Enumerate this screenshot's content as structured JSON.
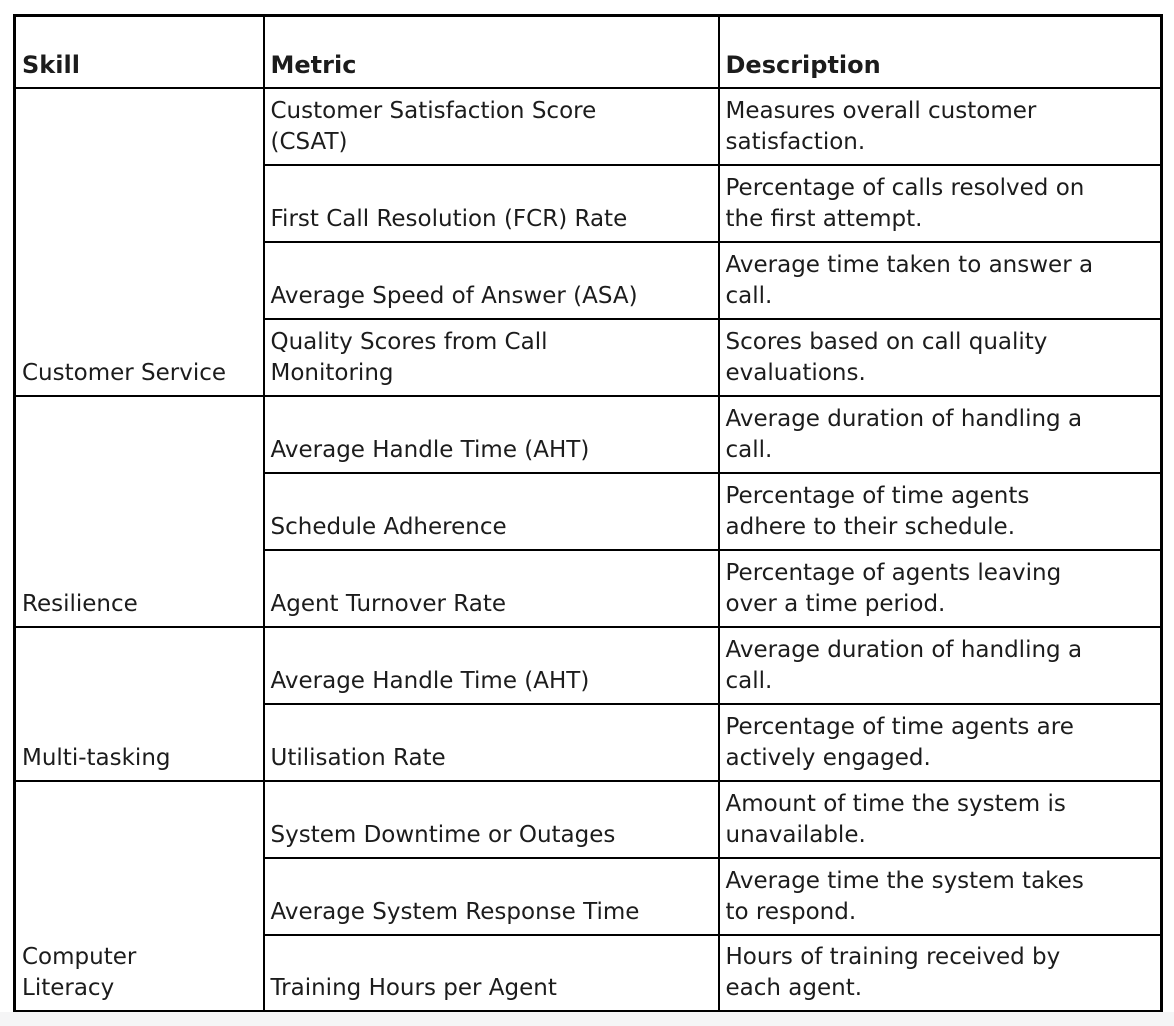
{
  "page": {
    "background_color": "#ffffff",
    "bottom_strip_color": "#f5f5f6"
  },
  "table": {
    "border_color": "#000000",
    "text_color": "#1c1c1c",
    "columns": [
      "Skill",
      "Metric",
      "Description"
    ],
    "groups": [
      {
        "skill": "Customer Service",
        "rows": [
          {
            "metric": "Customer Satisfaction Score\n(CSAT)",
            "description": "Measures overall customer\nsatisfaction."
          },
          {
            "metric": "First Call Resolution (FCR) Rate",
            "description": "Percentage of calls resolved on\nthe first attempt."
          },
          {
            "metric": "Average Speed of Answer (ASA)",
            "description": "Average time taken to answer a\ncall."
          },
          {
            "metric": "Quality Scores from Call\nMonitoring",
            "description": "Scores based on call quality\nevaluations."
          }
        ]
      },
      {
        "skill": "Resilience",
        "rows": [
          {
            "metric": "Average Handle Time (AHT)",
            "description": "Average duration of handling a\ncall."
          },
          {
            "metric": "Schedule Adherence",
            "description": "Percentage of time agents\nadhere to their schedule."
          },
          {
            "metric": "Agent Turnover Rate",
            "description": "Percentage of agents leaving\nover a time period."
          }
        ]
      },
      {
        "skill": "Multi-tasking",
        "rows": [
          {
            "metric": "Average Handle Time (AHT)",
            "description": "Average duration of handling a\ncall."
          },
          {
            "metric": "Utilisation Rate",
            "description": "Percentage of time agents are\nactively engaged."
          }
        ]
      },
      {
        "skill": "Computer\nLiteracy",
        "rows": [
          {
            "metric": "System Downtime or Outages",
            "description": "Amount of time the system is\nunavailable."
          },
          {
            "metric": "Average System Response Time",
            "description": "Average time the system takes\nto respond."
          },
          {
            "metric": "Training Hours per Agent",
            "description": "Hours of training received by\neach agent."
          }
        ]
      }
    ]
  }
}
